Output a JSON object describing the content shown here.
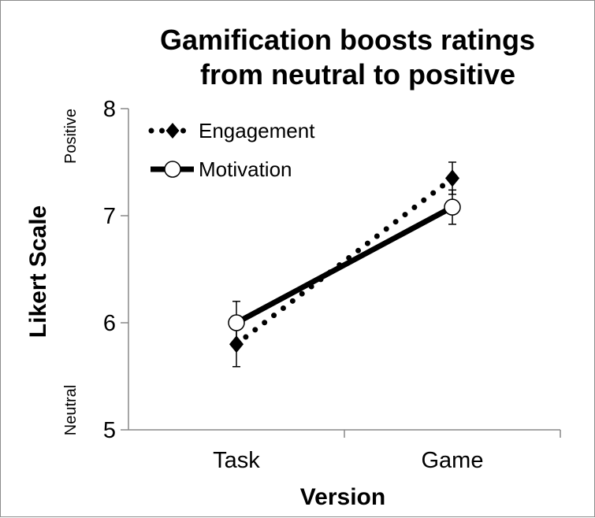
{
  "chart_data": {
    "type": "line",
    "title": "Gamification boosts ratings from neutral to positive",
    "title_lines": [
      "Gamification boosts ratings",
      "from neutral to positive"
    ],
    "xlabel": "Version",
    "ylabel": "Likert Scale",
    "categories": [
      "Task",
      "Game"
    ],
    "ylim": [
      5,
      8
    ],
    "yticks": [
      5,
      6,
      7,
      8
    ],
    "y_annotations": {
      "top": "Positive",
      "bottom": "Neutral"
    },
    "legend_position": "top-left",
    "grid": false,
    "series": [
      {
        "name": "Engagement",
        "values": [
          5.8,
          7.35
        ],
        "error": [
          0.21,
          0.15
        ],
        "line_style": "dotted",
        "marker": "diamond",
        "color": "#000000"
      },
      {
        "name": "Motivation",
        "values": [
          6.0,
          7.08
        ],
        "error": [
          0.2,
          0.16
        ],
        "line_style": "solid",
        "marker": "open-circle",
        "color": "#000000"
      }
    ]
  }
}
